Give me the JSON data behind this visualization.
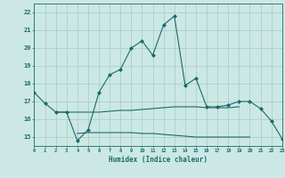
{
  "xlabel": "Humidex (Indice chaleur)",
  "bg_color": "#cce8e4",
  "grid_color": "#aacfcb",
  "line_color": "#1a6b6b",
  "x_values": [
    0,
    1,
    2,
    3,
    4,
    5,
    6,
    7,
    8,
    9,
    10,
    11,
    12,
    13,
    14,
    15,
    16,
    17,
    18,
    19,
    20,
    21,
    22,
    23
  ],
  "line1": [
    17.5,
    16.9,
    16.4,
    16.4,
    14.8,
    15.4,
    17.5,
    18.5,
    18.8,
    20.0,
    20.4,
    19.6,
    21.3,
    21.8,
    17.9,
    18.3,
    16.7,
    16.7,
    16.8,
    17.0,
    17.0,
    16.6,
    15.9,
    14.9
  ],
  "line2_x": [
    2,
    3,
    5,
    6,
    7,
    8,
    9,
    10,
    11,
    12,
    13,
    14,
    15,
    16,
    17,
    18,
    19
  ],
  "line2_y": [
    16.4,
    16.4,
    16.4,
    16.4,
    16.45,
    16.5,
    16.5,
    16.55,
    16.6,
    16.65,
    16.7,
    16.7,
    16.7,
    16.65,
    16.65,
    16.65,
    16.7
  ],
  "line3_x": [
    4,
    5,
    6,
    7,
    8,
    9,
    10,
    11,
    12,
    13,
    14,
    15,
    16,
    17,
    18,
    19,
    20
  ],
  "line3_y": [
    15.2,
    15.25,
    15.25,
    15.25,
    15.25,
    15.25,
    15.2,
    15.2,
    15.15,
    15.1,
    15.05,
    15.0,
    15.0,
    15.0,
    15.0,
    15.0,
    15.0
  ],
  "xlim": [
    0,
    23
  ],
  "ylim": [
    14.5,
    22.5
  ],
  "yticks": [
    15,
    16,
    17,
    18,
    19,
    20,
    21,
    22
  ],
  "xticks": [
    0,
    1,
    2,
    3,
    4,
    5,
    6,
    7,
    8,
    9,
    10,
    11,
    12,
    13,
    14,
    15,
    16,
    17,
    18,
    19,
    20,
    21,
    22,
    23
  ]
}
